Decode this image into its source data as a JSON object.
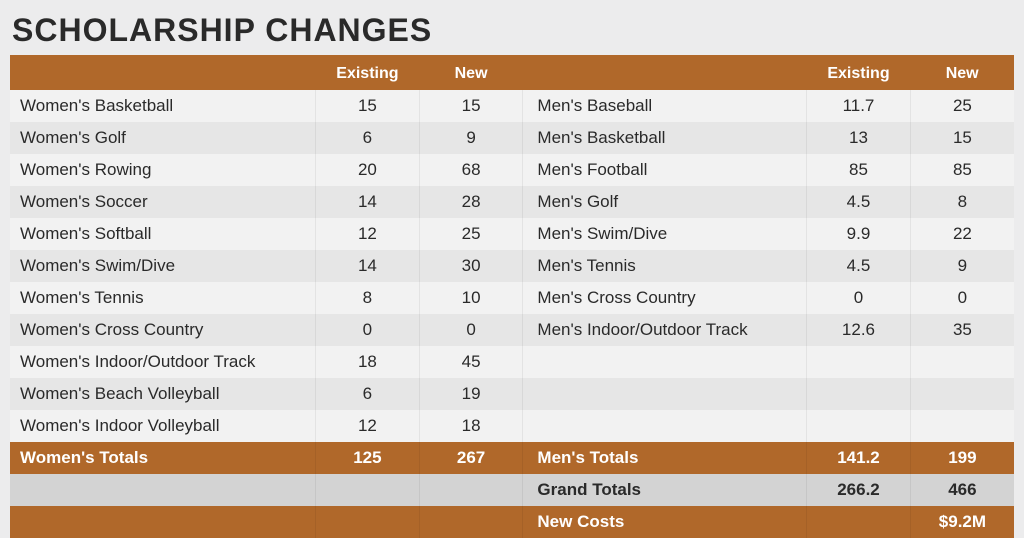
{
  "title": "SCHOLARSHIP CHANGES",
  "colors": {
    "header_bg": "#b0682a",
    "header_text": "#ffffff",
    "row_even": "#f2f2f2",
    "row_odd": "#e6e6e6",
    "grand_bg": "#d3d3d3",
    "page_bg": "#ececed",
    "text": "#2a2a2a"
  },
  "table": {
    "type": "table",
    "columns_left": [
      "",
      "Existing",
      "New"
    ],
    "columns_right": [
      "",
      "Existing",
      "New"
    ],
    "women": [
      {
        "sport": "Women's Basketball",
        "existing": "15",
        "new": "15"
      },
      {
        "sport": "Women's Golf",
        "existing": "6",
        "new": "9"
      },
      {
        "sport": "Women's Rowing",
        "existing": "20",
        "new": "68"
      },
      {
        "sport": "Women's Soccer",
        "existing": "14",
        "new": "28"
      },
      {
        "sport": "Women's Softball",
        "existing": "12",
        "new": "25"
      },
      {
        "sport": "Women's Swim/Dive",
        "existing": "14",
        "new": "30"
      },
      {
        "sport": "Women's Tennis",
        "existing": "8",
        "new": "10"
      },
      {
        "sport": "Women's Cross Country",
        "existing": "0",
        "new": "0"
      },
      {
        "sport": "Women's Indoor/Outdoor Track",
        "existing": "18",
        "new": "45"
      },
      {
        "sport": "Women's Beach Volleyball",
        "existing": "6",
        "new": "19"
      },
      {
        "sport": "Women's Indoor Volleyball",
        "existing": "12",
        "new": "18"
      }
    ],
    "men": [
      {
        "sport": "Men's Baseball",
        "existing": "11.7",
        "new": "25"
      },
      {
        "sport": "Men's Basketball",
        "existing": "13",
        "new": "15"
      },
      {
        "sport": "Men's Football",
        "existing": "85",
        "new": "85"
      },
      {
        "sport": "Men's Golf",
        "existing": "4.5",
        "new": "8"
      },
      {
        "sport": "Men's Swim/Dive",
        "existing": "9.9",
        "new": "22"
      },
      {
        "sport": "Men's Tennis",
        "existing": "4.5",
        "new": "9"
      },
      {
        "sport": "Men's Cross Country",
        "existing": "0",
        "new": "0"
      },
      {
        "sport": "Men's Indoor/Outdoor Track",
        "existing": "12.6",
        "new": "35"
      }
    ],
    "women_totals": {
      "label": "Women's Totals",
      "existing": "125",
      "new": "267"
    },
    "men_totals": {
      "label": "Men's Totals",
      "existing": "141.2",
      "new": "199"
    },
    "grand_totals": {
      "label": "Grand Totals",
      "existing": "266.2",
      "new": "466"
    },
    "new_costs": {
      "label": "New Costs",
      "value": "$9.2M"
    }
  }
}
